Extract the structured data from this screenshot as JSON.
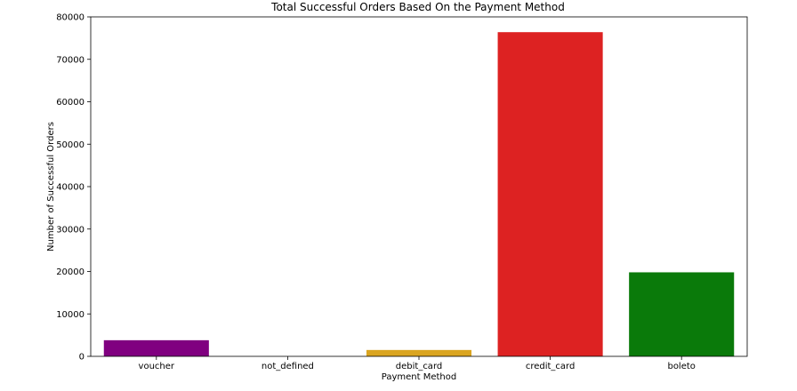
{
  "chart_data": {
    "type": "bar",
    "title": "Total Successful Orders Based On the Payment Method",
    "xlabel": "Payment Method",
    "ylabel": "Number of Successful Orders",
    "categories": [
      "voucher",
      "not_defined",
      "debit_card",
      "credit_card",
      "boleto"
    ],
    "values": [
      3800,
      3,
      1500,
      76400,
      19800
    ],
    "colors": [
      "#800080",
      "#808080",
      "#DAA520",
      "#DD2222",
      "#0A7A0A"
    ],
    "ylim": [
      0,
      80000
    ],
    "yticks": [
      0,
      10000,
      20000,
      30000,
      40000,
      50000,
      60000,
      70000,
      80000
    ],
    "grid": false,
    "legend": "none"
  }
}
